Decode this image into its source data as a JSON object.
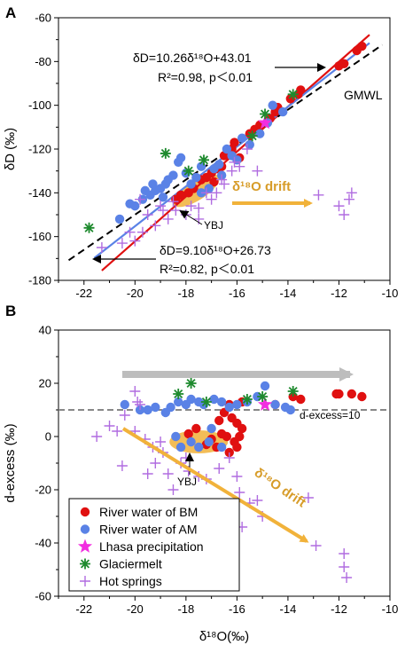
{
  "colors": {
    "river_bm": "#e01010",
    "river_am": "#5a82e6",
    "lhasa": "#f22ee0",
    "glacier": "#1e8a2e",
    "hot_springs": "#b06ce0",
    "drift": "#f1b23a",
    "gmwl_line": "#000000",
    "gray_arrow": "#bdbdbd"
  },
  "legend_items": [
    "River water of BM",
    "River water of AM",
    "Lhasa precipitation",
    "Glaciermelt",
    "Hot springs"
  ],
  "chart_data": [
    {
      "panel": "A",
      "type": "scatter",
      "xlim": [
        -23,
        -10
      ],
      "ylim": [
        -180,
        -60
      ],
      "x_ticks": [
        -22,
        -20,
        -18,
        -16,
        -14,
        -12,
        -10
      ],
      "y_ticks": [
        -180,
        -160,
        -140,
        -120,
        -100,
        -80,
        -60
      ],
      "ylabel": "δD (‰)",
      "series": [
        {
          "name": "River water of BM",
          "marker": "circle",
          "points": [
            [
              -11.1,
              -73
            ],
            [
              -11.3,
              -75
            ],
            [
              -11.8,
              -81
            ],
            [
              -12.0,
              -82
            ],
            [
              -13.5,
              -93
            ],
            [
              -13.6,
              -95
            ],
            [
              -13.9,
              -97
            ],
            [
              -14.4,
              -101
            ],
            [
              -14.5,
              -103
            ],
            [
              -14.7,
              -106
            ],
            [
              -15.1,
              -109
            ],
            [
              -15.3,
              -111
            ],
            [
              -15.5,
              -113
            ],
            [
              -16.1,
              -117
            ],
            [
              -16.2,
              -120
            ],
            [
              -16.3,
              -122
            ],
            [
              -16.5,
              -123
            ],
            [
              -16.6,
              -128
            ],
            [
              -16.8,
              -129
            ],
            [
              -17.0,
              -131
            ],
            [
              -17.2,
              -133
            ],
            [
              -17.4,
              -134
            ],
            [
              -17.7,
              -138
            ],
            [
              -17.9,
              -140
            ],
            [
              -18.2,
              -141
            ],
            [
              -18.4,
              -143
            ],
            [
              -15.9,
              -124
            ],
            [
              -16.9,
              -135
            ]
          ]
        },
        {
          "name": "River water of AM",
          "marker": "circle",
          "points": [
            [
              -20.6,
              -152
            ],
            [
              -20.0,
              -146
            ],
            [
              -19.7,
              -143
            ],
            [
              -19.6,
              -139
            ],
            [
              -19.4,
              -141
            ],
            [
              -19.2,
              -139
            ],
            [
              -19.0,
              -138
            ],
            [
              -18.8,
              -136
            ],
            [
              -18.7,
              -134
            ],
            [
              -18.5,
              -132
            ],
            [
              -18.3,
              -126
            ],
            [
              -18.2,
              -124
            ],
            [
              -18.0,
              -131
            ],
            [
              -17.8,
              -136
            ],
            [
              -17.6,
              -133
            ],
            [
              -17.4,
              -140
            ],
            [
              -17.1,
              -138
            ],
            [
              -16.9,
              -129
            ],
            [
              -16.7,
              -127
            ],
            [
              -16.6,
              -132
            ],
            [
              -16.4,
              -120
            ],
            [
              -16.2,
              -123
            ],
            [
              -16.0,
              -125
            ],
            [
              -15.8,
              -115
            ],
            [
              -15.5,
              -118
            ],
            [
              -15.1,
              -113
            ],
            [
              -14.8,
              -108
            ],
            [
              -14.6,
              -100
            ],
            [
              -14.2,
              -103
            ],
            [
              -17.4,
              -128
            ],
            [
              -18.9,
              -142
            ],
            [
              -19.3,
              -136
            ],
            [
              -20.2,
              -145
            ]
          ]
        },
        {
          "name": "Lhasa precipitation",
          "marker": "star",
          "points": [
            [
              -14.9,
              -108
            ]
          ]
        },
        {
          "name": "Glaciermelt",
          "marker": "asterisk",
          "points": [
            [
              -21.8,
              -156
            ],
            [
              -18.8,
              -122
            ],
            [
              -17.3,
              -125
            ],
            [
              -17.9,
              -130
            ],
            [
              -15.4,
              -114
            ],
            [
              -13.8,
              -95
            ],
            [
              -14.9,
              -104
            ]
          ]
        },
        {
          "name": "Hot springs",
          "marker": "plus",
          "points": [
            [
              -21.3,
              -165
            ],
            [
              -20.5,
              -163
            ],
            [
              -20.0,
              -162
            ],
            [
              -19.7,
              -158
            ],
            [
              -19.2,
              -155
            ],
            [
              -19.5,
              -150
            ],
            [
              -19.8,
              -143
            ],
            [
              -18.9,
              -148
            ],
            [
              -18.7,
              -152
            ],
            [
              -18.4,
              -148
            ],
            [
              -18.0,
              -150
            ],
            [
              -17.8,
              -146
            ],
            [
              -17.5,
              -147
            ],
            [
              -17.0,
              -143
            ],
            [
              -16.8,
              -140
            ],
            [
              -16.5,
              -136
            ],
            [
              -16.2,
              -130
            ],
            [
              -16.1,
              -126
            ],
            [
              -15.9,
              -128
            ],
            [
              -15.6,
              -120
            ],
            [
              -15.2,
              -130
            ],
            [
              -16.6,
              -134
            ],
            [
              -12.8,
              -141
            ],
            [
              -12.0,
              -146
            ],
            [
              -11.8,
              -150
            ],
            [
              -11.6,
              -143
            ],
            [
              -11.5,
              -140
            ],
            [
              -17.5,
              -152
            ],
            [
              -18.5,
              -144
            ],
            [
              -20.2,
              -158
            ],
            [
              -19.0,
              -146
            ],
            [
              -17.2,
              -140
            ]
          ]
        }
      ],
      "fit_lines": [
        {
          "name": "BM fit",
          "color": "#e01010",
          "slope": 10.26,
          "intercept": 43.01,
          "x_range": [
            -21.3,
            -10.8
          ]
        },
        {
          "name": "AM fit",
          "color": "#5a82e6",
          "slope": 9.1,
          "intercept": 26.73,
          "x_range": [
            -21.6,
            -10.8
          ]
        },
        {
          "name": "GMWL",
          "color": "#000000",
          "dashed": true,
          "slope": 8,
          "intercept": 10,
          "x_range": [
            -22.6,
            -10.3
          ]
        }
      ],
      "annotations": {
        "eq_top_1": "δD=10.26δ¹⁸O+43.01",
        "eq_top_2": "R²=0.98, p＜0.01",
        "gmwl": "GMWL",
        "ybj": "YBJ",
        "drift": "δ¹⁸O drift",
        "eq_bot_1": "δD=9.10δ¹⁸O+26.73",
        "eq_bot_2": "R²=0.82, p＜0.01"
      }
    },
    {
      "panel": "B",
      "type": "scatter",
      "xlim": [
        -23,
        -10
      ],
      "ylim": [
        -60,
        40
      ],
      "x_ticks": [
        -22,
        -20,
        -18,
        -16,
        -14,
        -12,
        -10
      ],
      "y_ticks": [
        -60,
        -40,
        -20,
        0,
        20,
        40
      ],
      "xlabel": "δ¹⁸O(‰)",
      "ylabel": "d-excess (‰)",
      "reference_line": {
        "y": 10,
        "label": "d-excess=10"
      },
      "series": [
        {
          "name": "River water of BM",
          "marker": "circle",
          "points": [
            [
              -12.1,
              16
            ],
            [
              -12.0,
              16
            ],
            [
              -11.5,
              16
            ],
            [
              -11.1,
              15
            ],
            [
              -13.5,
              14
            ],
            [
              -13.8,
              15
            ],
            [
              -14.5,
              12
            ],
            [
              -15.8,
              13
            ],
            [
              -16.3,
              12
            ],
            [
              -16.5,
              9
            ],
            [
              -16.2,
              7
            ],
            [
              -16.0,
              5
            ],
            [
              -15.8,
              3
            ],
            [
              -16.1,
              -2
            ],
            [
              -16.4,
              0
            ],
            [
              -16.6,
              1
            ],
            [
              -16.8,
              -4
            ],
            [
              -17.0,
              -1
            ],
            [
              -17.2,
              -3
            ],
            [
              -17.6,
              3
            ],
            [
              -17.9,
              1
            ],
            [
              -16.3,
              -6
            ],
            [
              -16.0,
              -4
            ],
            [
              -15.9,
              0
            ],
            [
              -16.7,
              6
            ]
          ]
        },
        {
          "name": "River water of AM",
          "marker": "circle",
          "points": [
            [
              -20.4,
              12
            ],
            [
              -19.8,
              10
            ],
            [
              -19.5,
              10
            ],
            [
              -19.2,
              11
            ],
            [
              -18.8,
              9
            ],
            [
              -18.6,
              11
            ],
            [
              -18.3,
              13
            ],
            [
              -18.0,
              12
            ],
            [
              -17.8,
              14
            ],
            [
              -17.5,
              13
            ],
            [
              -17.3,
              12
            ],
            [
              -16.9,
              14
            ],
            [
              -16.6,
              13
            ],
            [
              -16.3,
              11
            ],
            [
              -16.0,
              12
            ],
            [
              -15.6,
              13
            ],
            [
              -15.2,
              15
            ],
            [
              -14.9,
              19
            ],
            [
              -14.5,
              12
            ],
            [
              -14.1,
              11
            ],
            [
              -13.9,
              10
            ],
            [
              -17.8,
              -2
            ],
            [
              -18.2,
              -4
            ],
            [
              -17.5,
              -4
            ],
            [
              -17.1,
              -2
            ],
            [
              -18.4,
              0
            ],
            [
              -17.0,
              3
            ],
            [
              -16.6,
              -4
            ]
          ]
        },
        {
          "name": "Lhasa precipitation",
          "marker": "star",
          "points": [
            [
              -14.9,
              12
            ]
          ]
        },
        {
          "name": "Glaciermelt",
          "marker": "asterisk",
          "points": [
            [
              -17.8,
              20
            ],
            [
              -18.3,
              16
            ],
            [
              -17.2,
              13
            ],
            [
              -15.6,
              14
            ],
            [
              -15.0,
              15
            ],
            [
              -13.8,
              17
            ]
          ]
        },
        {
          "name": "Hot springs",
          "marker": "plus",
          "points": [
            [
              -20.0,
              17
            ],
            [
              -19.9,
              13
            ],
            [
              -20.4,
              8
            ],
            [
              -21.0,
              4
            ],
            [
              -20.7,
              2
            ],
            [
              -21.5,
              0
            ],
            [
              -20.0,
              2
            ],
            [
              -19.6,
              -1
            ],
            [
              -19.3,
              -4
            ],
            [
              -18.9,
              -6
            ],
            [
              -19.2,
              -10
            ],
            [
              -19.5,
              -14
            ],
            [
              -18.7,
              -14
            ],
            [
              -18.2,
              -10
            ],
            [
              -18.0,
              -8
            ],
            [
              -17.9,
              -13
            ],
            [
              -17.5,
              -15
            ],
            [
              -17.2,
              -16
            ],
            [
              -16.7,
              -12
            ],
            [
              -16.3,
              -8
            ],
            [
              -16.0,
              -15
            ],
            [
              -15.9,
              -21
            ],
            [
              -15.5,
              -25
            ],
            [
              -15.2,
              -24
            ],
            [
              -15.0,
              -30
            ],
            [
              -15.8,
              -34
            ],
            [
              -13.2,
              -23
            ],
            [
              -12.9,
              -41
            ],
            [
              -11.8,
              -44
            ],
            [
              -11.8,
              -49
            ],
            [
              -11.7,
              -53
            ],
            [
              -19.0,
              -2
            ],
            [
              -20.5,
              -11
            ],
            [
              -18.5,
              -20
            ],
            [
              -19.8,
              12
            ]
          ]
        }
      ],
      "annotations": {
        "ybj": "YBJ",
        "drift": "δ¹⁸O drift",
        "ref_label": "d-excess=10"
      }
    }
  ]
}
